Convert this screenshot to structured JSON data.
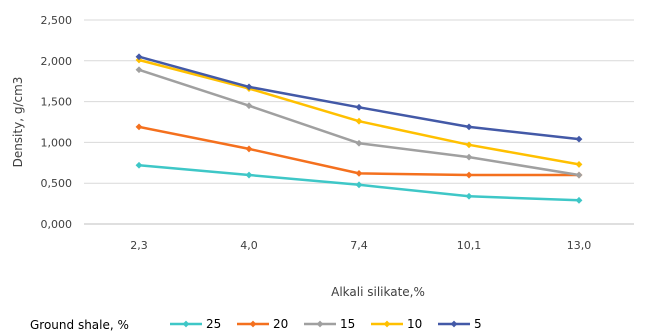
{
  "chart_data": {
    "type": "line",
    "categories": [
      "2,3",
      "4,0",
      "7,4",
      "10,1",
      "13,0"
    ],
    "xlabel": "Alkali silikate,%",
    "ylabel": "Density, g/cm3",
    "ylim": [
      0,
      2.5
    ],
    "yticks": [
      0,
      0.5,
      1.0,
      1.5,
      2.0,
      2.5
    ],
    "ytick_labels": [
      "0,000",
      "0,500",
      "1,000",
      "1,500",
      "2,000",
      "2,500"
    ],
    "grid": true,
    "legend_position": "bottom",
    "legend_title": "Ground shale, %",
    "series": [
      {
        "name": "25",
        "color": "#3ec7c7",
        "values": [
          0.72,
          0.6,
          0.48,
          0.34,
          0.29
        ]
      },
      {
        "name": "20",
        "color": "#f4701e",
        "values": [
          1.19,
          0.92,
          0.62,
          0.6,
          0.6
        ]
      },
      {
        "name": "15",
        "color": "#a0a0a0",
        "values": [
          1.89,
          1.45,
          0.99,
          0.82,
          0.6
        ]
      },
      {
        "name": "10",
        "color": "#ffc000",
        "values": [
          2.01,
          1.66,
          1.26,
          0.97,
          0.73
        ]
      },
      {
        "name": "5",
        "color": "#4359a7",
        "values": [
          2.05,
          1.68,
          1.43,
          1.19,
          1.04
        ]
      }
    ]
  }
}
